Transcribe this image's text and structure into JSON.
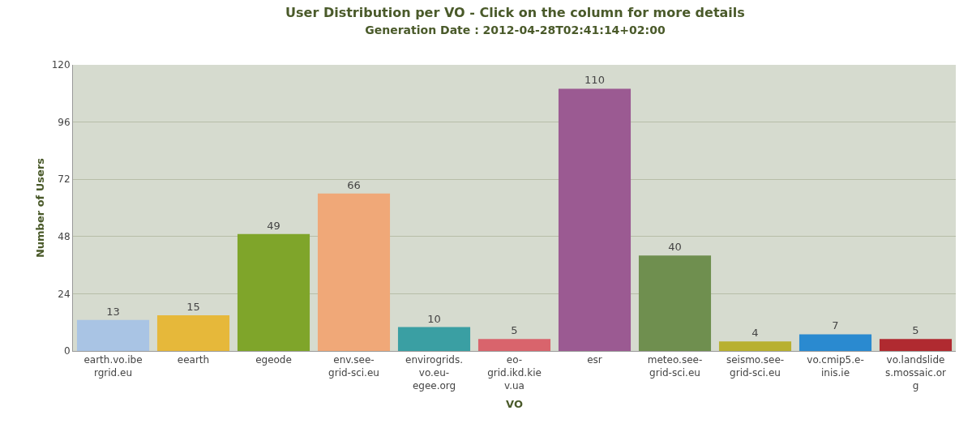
{
  "chart_data": {
    "type": "bar",
    "title": "User Distribution per VO - Click on the column for more details",
    "subtitle": "Generation Date : 2012-04-28T02:41:14+02:00",
    "xlabel": "VO",
    "ylabel": "Number of Users",
    "categories": [
      "earth.vo.ibergrid.eu",
      "eearth",
      "egeode",
      "env.see-grid-sci.eu",
      "envirogrids.vo.eu-egee.org",
      "eo-grid.ikd.kiev.ua",
      "esr",
      "meteo.see-grid-sci.eu",
      "seismo.see-grid-sci.eu",
      "vo.cmip5.e-inis.ie",
      "vo.landslides.mossaic.org"
    ],
    "values": [
      13,
      15,
      49,
      66,
      10,
      5,
      110,
      40,
      4,
      7,
      5
    ],
    "colors": [
      "#a9c4e4",
      "#e6b83a",
      "#7fa52a",
      "#f0a878",
      "#3a9fa3",
      "#d9646c",
      "#9b5a92",
      "#6f8f4f",
      "#b8b030",
      "#2a8ad0",
      "#b02a30"
    ],
    "ylim": [
      0,
      120
    ],
    "yticks": [
      0,
      24,
      48,
      72,
      96,
      120
    ],
    "grid": "y",
    "data_labels": true
  }
}
